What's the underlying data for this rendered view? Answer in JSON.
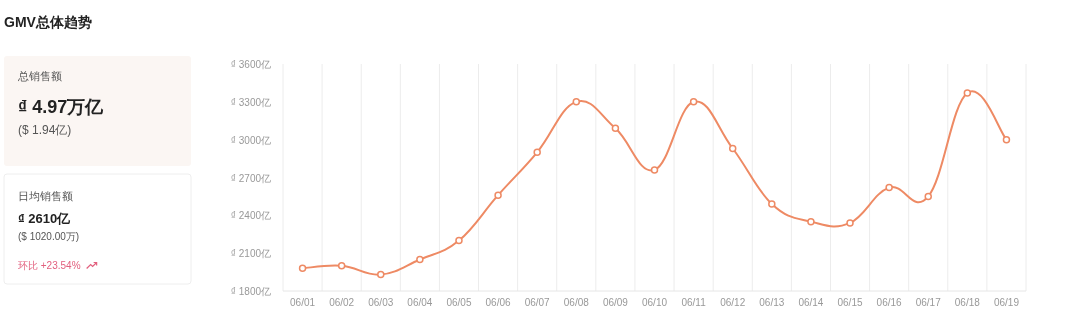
{
  "chart_data": {
    "type": "line",
    "title": "GMV总体趋势",
    "categories": [
      "06/01",
      "06/02",
      "06/03",
      "06/04",
      "06/05",
      "06/06",
      "06/07",
      "06/08",
      "06/09",
      "06/10",
      "06/11",
      "06/12",
      "06/13",
      "06/14",
      "06/15",
      "06/16",
      "06/17",
      "06/18",
      "06/19"
    ],
    "series": [
      {
        "color": "#ee8a64",
        "values": [
          1980,
          2000,
          1930,
          2050,
          2200,
          2560,
          2900,
          3300,
          3090,
          2760,
          3300,
          2930,
          2490,
          2350,
          2340,
          2620,
          2550,
          3370,
          3000
        ]
      }
    ],
    "ylim": [
      1800,
      3600
    ],
    "yticks": [
      {
        "value": 1800,
        "label": "₫ 1800亿"
      },
      {
        "value": 2100,
        "label": "₫ 2100亿"
      },
      {
        "value": 2400,
        "label": "₫ 2400亿"
      },
      {
        "value": 2700,
        "label": "₫ 2700亿"
      },
      {
        "value": 3000,
        "label": "₫ 3000亿"
      },
      {
        "value": 3300,
        "label": "₫ 3300亿"
      },
      {
        "value": 3600,
        "label": "₫ 3600亿"
      }
    ],
    "grid": "x",
    "marker": "circle",
    "line_style": "solid",
    "annotations": [
      "总销售额",
      "₫ 4.97万亿",
      "($ 1.94亿)",
      "日均销售额",
      "₫ 2610亿",
      "($ 1020.00万)",
      "环比 +23.54%"
    ]
  }
}
